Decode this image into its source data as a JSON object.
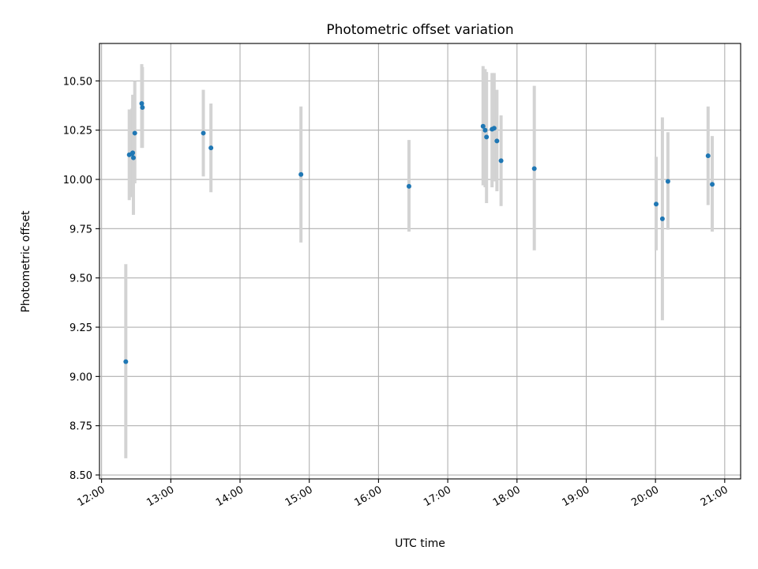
{
  "chart_data": {
    "type": "scatter",
    "title": "Photometric offset variation",
    "xlabel": "UTC time",
    "ylabel": "Photometric offset",
    "xlim": [
      11.97,
      21.23
    ],
    "ylim": [
      8.48,
      10.69
    ],
    "x_ticks": [
      {
        "value": 12,
        "label": "12:00"
      },
      {
        "value": 13,
        "label": "13:00"
      },
      {
        "value": 14,
        "label": "14:00"
      },
      {
        "value": 15,
        "label": "15:00"
      },
      {
        "value": 16,
        "label": "16:00"
      },
      {
        "value": 17,
        "label": "17:00"
      },
      {
        "value": 18,
        "label": "18:00"
      },
      {
        "value": 19,
        "label": "19:00"
      },
      {
        "value": 20,
        "label": "20:00"
      },
      {
        "value": 21,
        "label": "21:00"
      }
    ],
    "y_ticks": [
      {
        "value": 8.5,
        "label": "8.50"
      },
      {
        "value": 8.75,
        "label": "8.75"
      },
      {
        "value": 9.0,
        "label": "9.00"
      },
      {
        "value": 9.25,
        "label": "9.25"
      },
      {
        "value": 9.5,
        "label": "9.50"
      },
      {
        "value": 9.75,
        "label": "9.75"
      },
      {
        "value": 10.0,
        "label": "10.00"
      },
      {
        "value": 10.25,
        "label": "10.25"
      },
      {
        "value": 10.5,
        "label": "10.50"
      }
    ],
    "grid": true,
    "marker_color": "#1f77b4",
    "errorbar_color": "#d3d3d3",
    "points": [
      {
        "time": "12:21",
        "x": 12.35,
        "y": 9.075,
        "yerr_low": 8.585,
        "yerr_high": 9.57
      },
      {
        "time": "12:24",
        "x": 12.4,
        "y": 10.125,
        "yerr_low": 9.895,
        "yerr_high": 10.355
      },
      {
        "time": "12:26",
        "x": 12.44,
        "y": 10.13,
        "yerr_low": 9.91,
        "yerr_high": 10.36
      },
      {
        "time": "12:27",
        "x": 12.45,
        "y": 10.135,
        "yerr_low": 9.96,
        "yerr_high": 10.43
      },
      {
        "time": "12:28",
        "x": 12.46,
        "y": 10.11,
        "yerr_low": 9.82,
        "yerr_high": 10.4
      },
      {
        "time": "12:29",
        "x": 12.48,
        "y": 10.235,
        "yerr_low": 9.98,
        "yerr_high": 10.5
      },
      {
        "time": "12:35",
        "x": 12.58,
        "y": 10.385,
        "yerr_low": 10.16,
        "yerr_high": 10.585
      },
      {
        "time": "12:36",
        "x": 12.59,
        "y": 10.365,
        "yerr_low": 10.16,
        "yerr_high": 10.57
      },
      {
        "time": "13:28",
        "x": 13.47,
        "y": 10.235,
        "yerr_low": 10.015,
        "yerr_high": 10.455
      },
      {
        "time": "13:35",
        "x": 13.58,
        "y": 10.16,
        "yerr_low": 9.935,
        "yerr_high": 10.385
      },
      {
        "time": "14:53",
        "x": 14.88,
        "y": 10.025,
        "yerr_low": 9.68,
        "yerr_high": 10.37
      },
      {
        "time": "16:26",
        "x": 16.44,
        "y": 9.965,
        "yerr_low": 9.735,
        "yerr_high": 10.2
      },
      {
        "time": "17:30",
        "x": 17.51,
        "y": 10.27,
        "yerr_low": 9.97,
        "yerr_high": 10.575
      },
      {
        "time": "17:32",
        "x": 17.54,
        "y": 10.25,
        "yerr_low": 9.96,
        "yerr_high": 10.56
      },
      {
        "time": "17:34",
        "x": 17.56,
        "y": 10.215,
        "yerr_low": 9.88,
        "yerr_high": 10.545
      },
      {
        "time": "17:38",
        "x": 17.64,
        "y": 10.255,
        "yerr_low": 9.96,
        "yerr_high": 10.54
      },
      {
        "time": "17:40",
        "x": 17.67,
        "y": 10.26,
        "yerr_low": 9.99,
        "yerr_high": 10.54
      },
      {
        "time": "17:43",
        "x": 17.71,
        "y": 10.195,
        "yerr_low": 9.94,
        "yerr_high": 10.455
      },
      {
        "time": "17:46",
        "x": 17.77,
        "y": 10.095,
        "yerr_low": 9.865,
        "yerr_high": 10.325
      },
      {
        "time": "18:15",
        "x": 18.25,
        "y": 10.055,
        "yerr_low": 9.64,
        "yerr_high": 10.475
      },
      {
        "time": "20:01",
        "x": 20.01,
        "y": 9.875,
        "yerr_low": 9.64,
        "yerr_high": 10.115
      },
      {
        "time": "20:05",
        "x": 20.1,
        "y": 9.8,
        "yerr_low": 9.285,
        "yerr_high": 10.315
      },
      {
        "time": "20:10",
        "x": 20.18,
        "y": 9.99,
        "yerr_low": 9.745,
        "yerr_high": 10.24
      },
      {
        "time": "20:45",
        "x": 20.76,
        "y": 10.12,
        "yerr_low": 9.87,
        "yerr_high": 10.37
      },
      {
        "time": "20:49",
        "x": 20.82,
        "y": 9.975,
        "yerr_low": 9.735,
        "yerr_high": 10.22
      }
    ]
  }
}
